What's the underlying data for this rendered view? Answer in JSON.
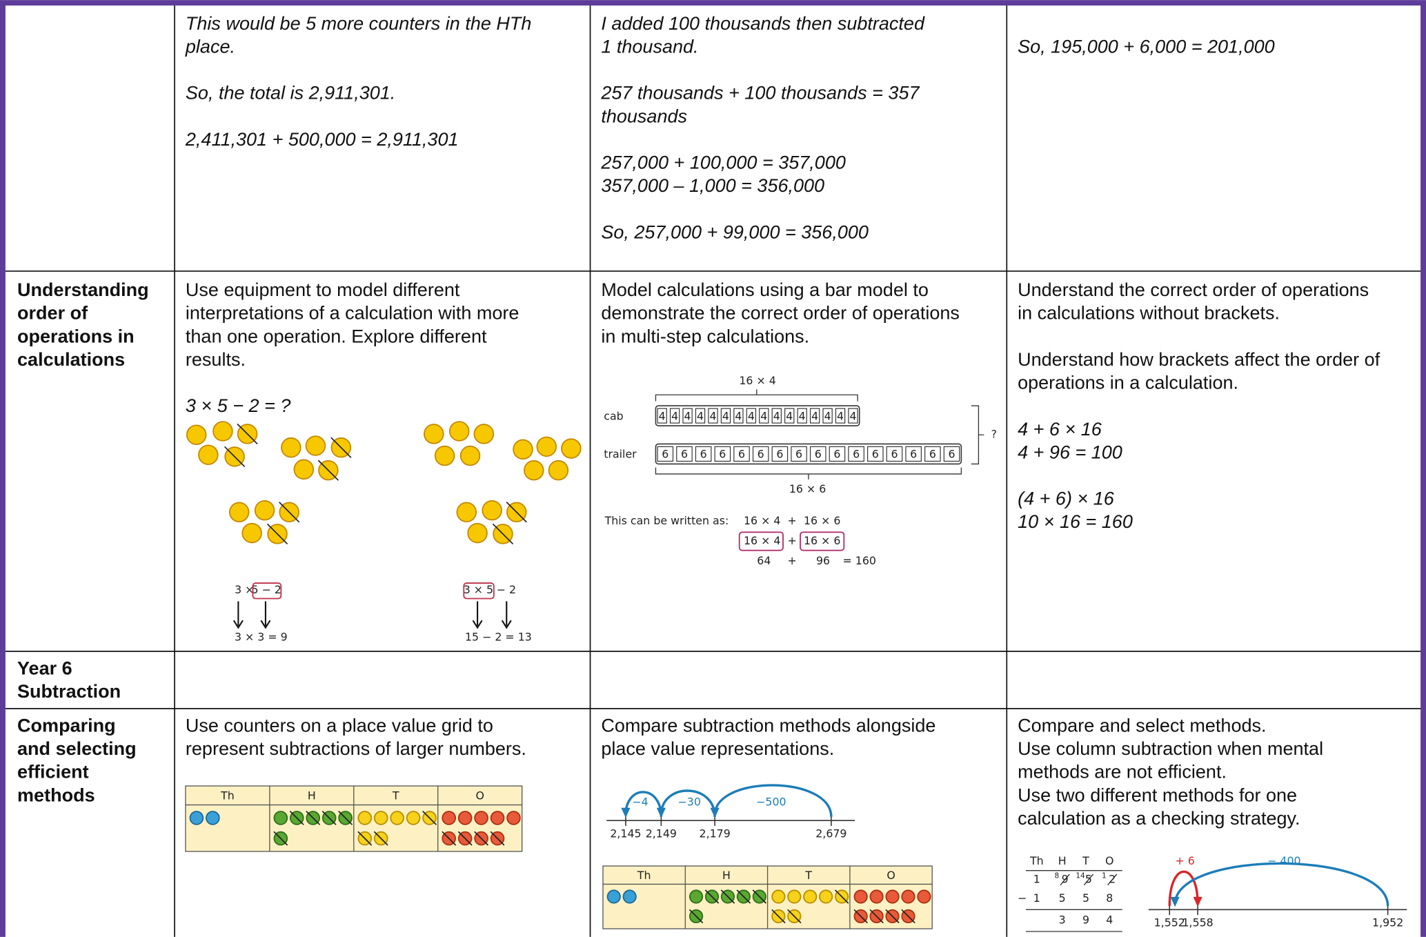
{
  "rows": [
    {
      "cells": [
        {
          "paragraphs": [
            {
              "italic": true,
              "lines": [
                "This would be 5 more counters in the HTh",
                "place."
              ]
            },
            {
              "italic": true,
              "lines": [
                "So, the total is 2,911,301."
              ]
            },
            {
              "italic": true,
              "lines": [
                "2,411,301 + 500,000 = 2,911,301"
              ]
            }
          ]
        },
        {
          "paragraphs": [
            {
              "italic": true,
              "lines": [
                "I added 100 thousands then subtracted",
                "1 thousand."
              ]
            },
            {
              "italic": true,
              "lines": [
                "257 thousands + 100 thousands  = 357",
                "thousands"
              ]
            },
            {
              "italic": true,
              "lines": [
                "257,000 + 100,000 = 357,000",
                "357,000 – 1,000 = 356,000"
              ]
            },
            {
              "italic": true,
              "lines": [
                "So, 257,000 + 99,000 = 356,000"
              ]
            }
          ]
        },
        {
          "paragraphs": [
            {
              "italic": true,
              "lines": [
                "So, 195,000 + 6,000 = 201,000"
              ]
            }
          ]
        }
      ]
    },
    {
      "heading": [
        "Understanding",
        "order of",
        "operations in",
        "calculations"
      ],
      "cells": [
        {
          "paragraphs": [
            {
              "italic": false,
              "lines": [
                "Use equipment to model different",
                "interpretations of a calculation with more",
                "than one operation. Explore different",
                "results."
              ]
            },
            {
              "italic": true,
              "lines": [
                "3 × 5 − 2 = ?"
              ]
            }
          ],
          "counter_models": [
            {
              "top": [
                "3 ×",
                "5 − 2"
              ],
              "bottom": "3  ×  3 = 9"
            },
            {
              "top": [
                "3 × 5",
                "− 2"
              ],
              "bottom": "15  −  2 = 13"
            }
          ]
        },
        {
          "paragraphs": [
            {
              "italic": false,
              "lines": [
                "Model calculations using a bar model to",
                "demonstrate the correct order of operations",
                "in multi-step calculations."
              ]
            }
          ],
          "bar_model": {
            "top_label": "16 × 4",
            "bottom_label": "16 × 6",
            "whole": "?",
            "bars": [
              {
                "name": "cab",
                "cells": [
                  "4",
                  "4",
                  "4",
                  "4",
                  "4",
                  "4",
                  "4",
                  "4",
                  "4",
                  "4",
                  "4",
                  "4",
                  "4",
                  "4",
                  "4",
                  "4"
                ]
              },
              {
                "name": "trailer",
                "cells": [
                  "6",
                  "6",
                  "6",
                  "6",
                  "6",
                  "6",
                  "6",
                  "6",
                  "6",
                  "6",
                  "6",
                  "6",
                  "6",
                  "6",
                  "6",
                  "6"
                ]
              }
            ],
            "written_as": "This can be written as:",
            "expression": [
              "16 × 4",
              "+",
              "16 × 6"
            ],
            "boxed": [
              "16 × 4",
              "+",
              "16 × 6"
            ],
            "result": [
              "64",
              "+",
              "96",
              "= 160"
            ]
          }
        },
        {
          "paragraphs": [
            {
              "italic": false,
              "lines": [
                "Understand the correct order of operations",
                "in calculations without brackets."
              ]
            },
            {
              "italic": false,
              "lines": [
                "Understand how brackets affect the order of",
                "operations in a calculation."
              ]
            },
            {
              "italic": true,
              "lines": [
                "4 + 6 × 16",
                "4 +   96   = 100"
              ]
            },
            {
              "italic": true,
              "lines": [
                "(4 + 6) × 16",
                "   10    × 16 = 160"
              ]
            }
          ]
        }
      ]
    },
    {
      "heading": [
        "Year 6",
        "Subtraction"
      ]
    },
    {
      "heading": [
        "Comparing",
        "and selecting",
        "efficient",
        "methods"
      ],
      "cells": [
        {
          "paragraphs": [
            {
              "italic": false,
              "lines": [
                "Use counters on a place value grid to",
                "represent subtractions of larger numbers."
              ]
            }
          ],
          "place_value_grid": {
            "headings": [
              "Th",
              "H",
              "T",
              "O"
            ]
          }
        },
        {
          "paragraphs": [
            {
              "italic": false,
              "lines": [
                "Compare subtraction methods alongside",
                "place value representations."
              ]
            }
          ],
          "number_line": {
            "jumps": [
              "−4",
              "−30",
              "−500"
            ],
            "points": [
              "2,145",
              "2,149",
              "2,179",
              "2,679"
            ]
          },
          "place_value_grid": {
            "headings": [
              "Th",
              "H",
              "T",
              "O"
            ]
          }
        },
        {
          "paragraphs": [
            {
              "italic": false,
              "lines": [
                "Compare and select methods.",
                "Use column subtraction when mental",
                "methods are not efficient.",
                "Use two different methods for one",
                "calculation as a checking strategy."
              ]
            }
          ],
          "column_method": {
            "headings": [
              "Th",
              "H",
              "T",
              "O"
            ],
            "exchanges": [
              "8",
              "14",
              "1"
            ],
            "top": [
              "1",
              "9",
              "5",
              "2"
            ],
            "sign": "−",
            "bottom": [
              "1",
              "5",
              "5",
              "8"
            ],
            "answer": [
              "3",
              "9",
              "4"
            ]
          },
          "number_line": {
            "jumps": [
              "+ 6",
              "− 400"
            ],
            "points": [
              "1,552",
              "1,558",
              "1,952"
            ]
          }
        }
      ]
    }
  ]
}
